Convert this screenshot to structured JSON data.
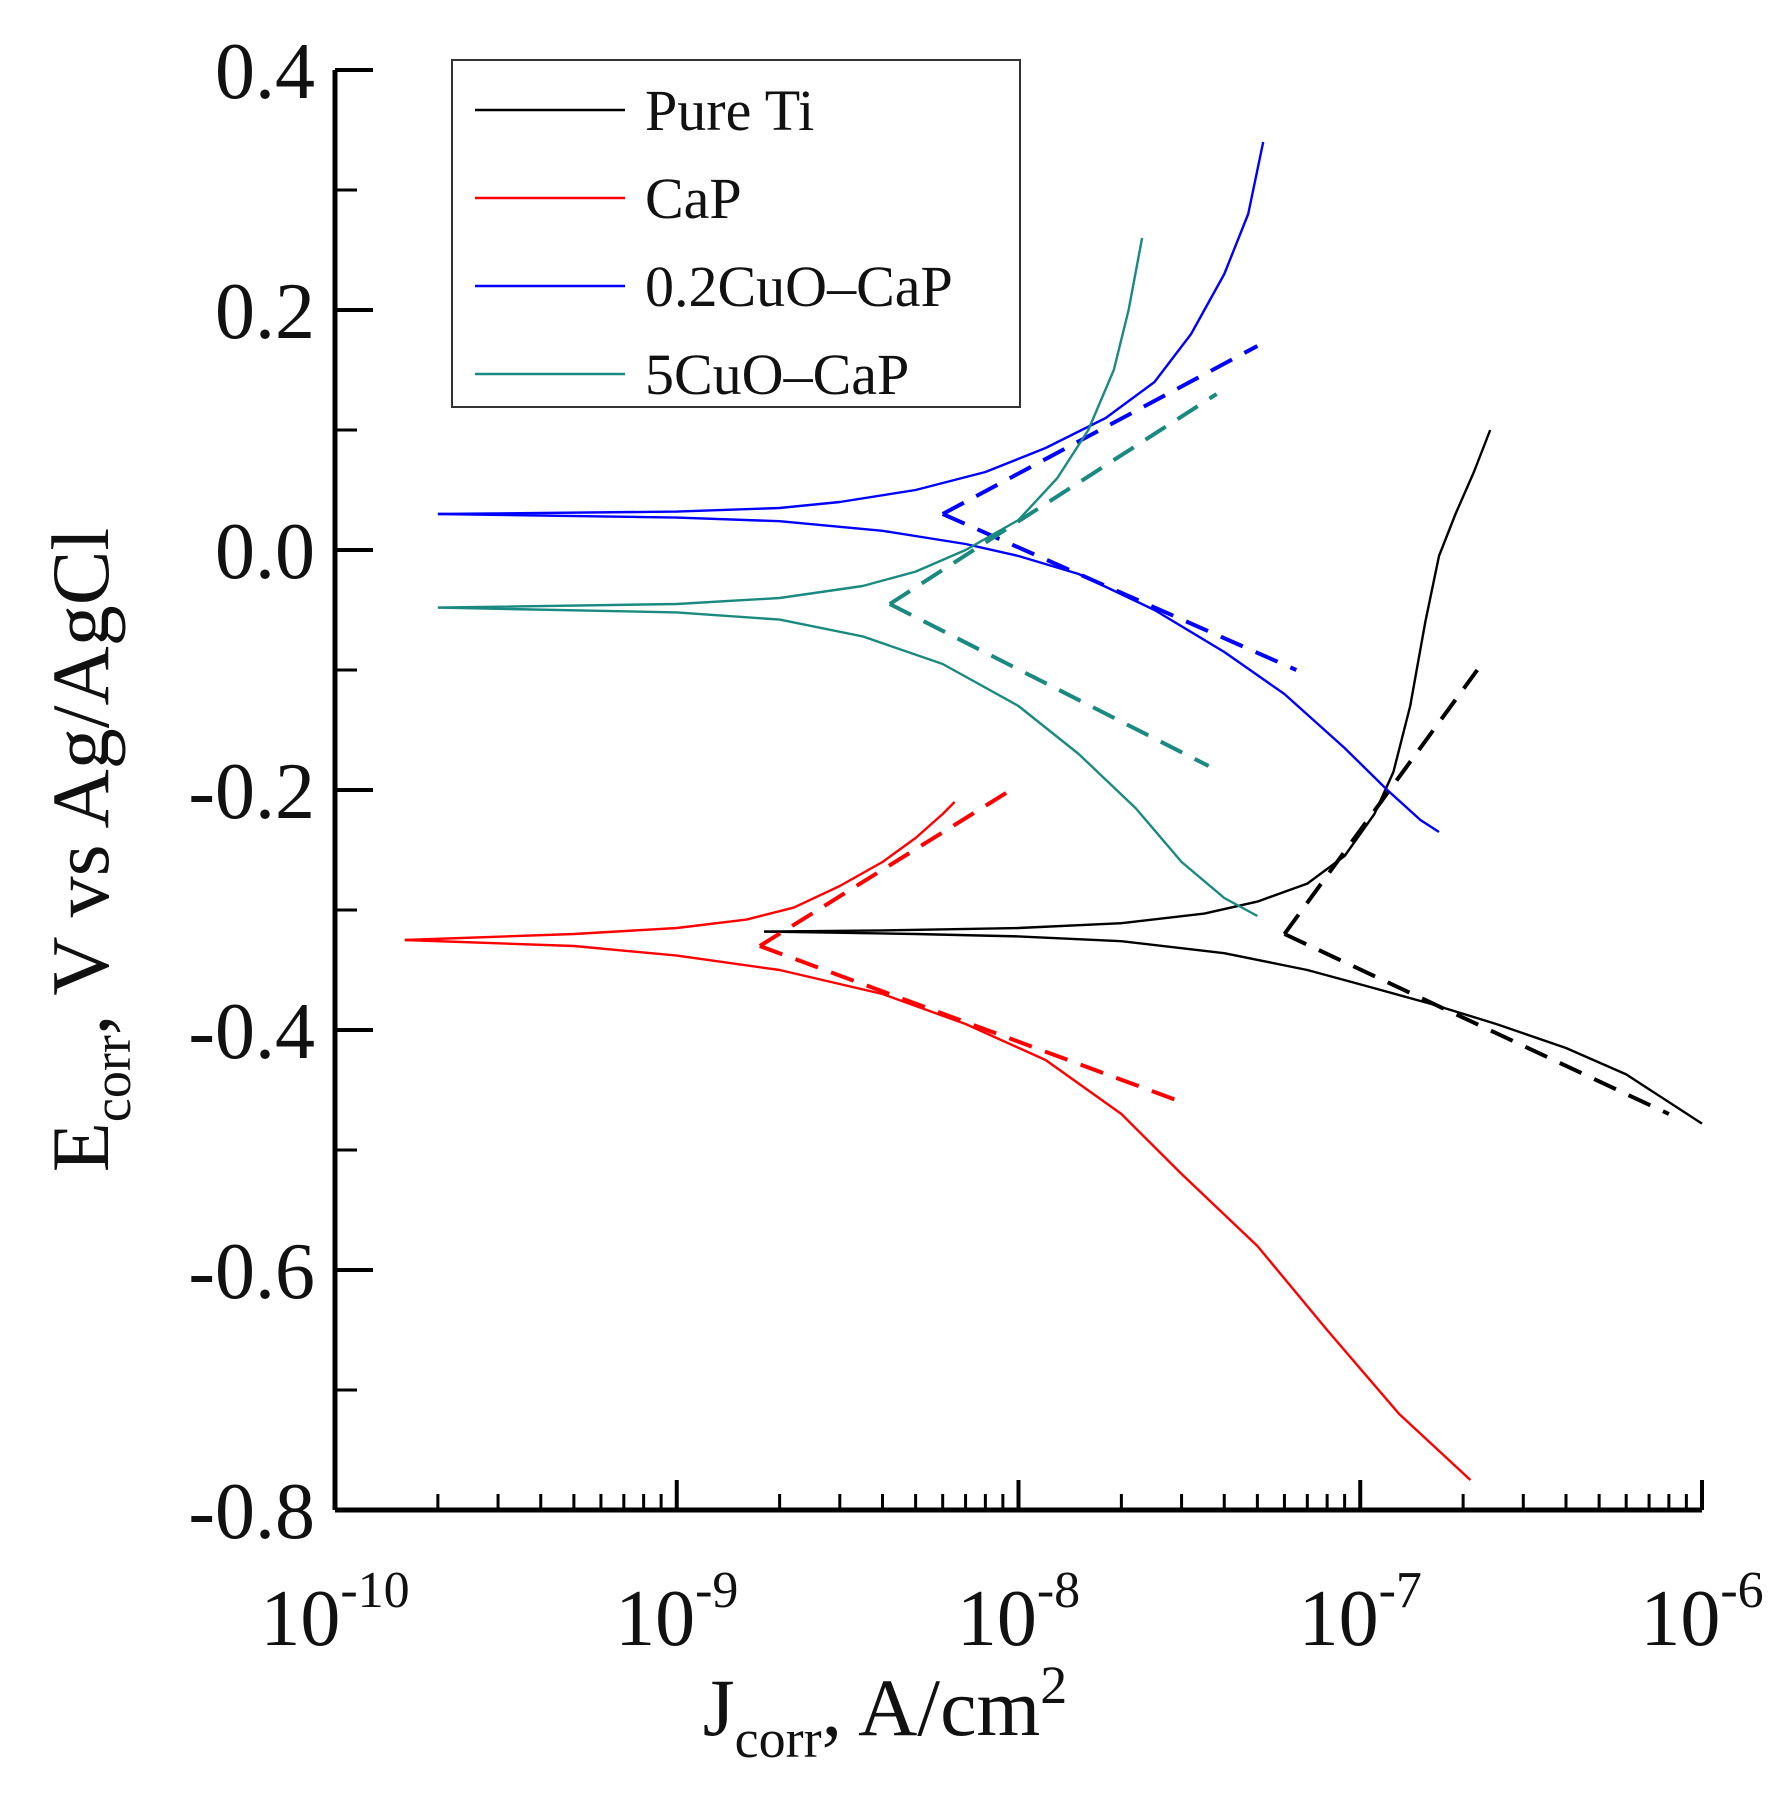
{
  "chart_data": {
    "type": "line",
    "title": "",
    "xlabel": {
      "main": "J",
      "sub": "corr",
      "rest": ", A/cm",
      "sup": "2"
    },
    "ylabel": {
      "main": "E",
      "sub": "corr",
      "rest": ", V vs Ag/AgCl"
    },
    "x_scale": "log",
    "xlim": [
      1e-10,
      1e-06
    ],
    "ylim": [
      -0.8,
      0.4
    ],
    "y_ticks": [
      "0.4",
      "0.2",
      "0.0",
      "-0.2",
      "-0.4",
      "-0.6",
      "-0.8"
    ],
    "y_tick_values": [
      0.4,
      0.2,
      0.0,
      -0.2,
      -0.4,
      -0.6,
      -0.8
    ],
    "x_ticks": [
      {
        "base": "10",
        "exp": "-10",
        "value": 1e-10
      },
      {
        "base": "10",
        "exp": "-9",
        "value": 1e-09
      },
      {
        "base": "10",
        "exp": "-8",
        "value": 1e-08
      },
      {
        "base": "10",
        "exp": "-7",
        "value": 1e-07
      },
      {
        "base": "10",
        "exp": "-6",
        "value": 1e-06
      }
    ],
    "legend": {
      "position": "top-left"
    },
    "series": [
      {
        "name": "Pure Ti",
        "color": "#000000",
        "anodic": [
          [
            1.8e-09,
            -0.318
          ],
          [
            4e-09,
            -0.317
          ],
          [
            1e-08,
            -0.315
          ],
          [
            2e-08,
            -0.311
          ],
          [
            3.5e-08,
            -0.303
          ],
          [
            5e-08,
            -0.293
          ],
          [
            7e-08,
            -0.278
          ],
          [
            9e-08,
            -0.255
          ],
          [
            1.1e-07,
            -0.22
          ],
          [
            1.25e-07,
            -0.185
          ],
          [
            1.4e-07,
            -0.13
          ],
          [
            1.55e-07,
            -0.06
          ],
          [
            1.7e-07,
            -0.005
          ],
          [
            1.9e-07,
            0.03
          ],
          [
            2.15e-07,
            0.065
          ],
          [
            2.4e-07,
            0.1
          ]
        ],
        "cathodic": [
          [
            1.8e-09,
            -0.318
          ],
          [
            5e-09,
            -0.32
          ],
          [
            1e-08,
            -0.322
          ],
          [
            2e-08,
            -0.326
          ],
          [
            4e-08,
            -0.336
          ],
          [
            7e-08,
            -0.35
          ],
          [
            1e-07,
            -0.362
          ],
          [
            1.6e-07,
            -0.378
          ],
          [
            2.5e-07,
            -0.395
          ],
          [
            4e-07,
            -0.415
          ],
          [
            6e-07,
            -0.437
          ],
          [
            1e-06,
            -0.478
          ]
        ],
        "tafel": [
          [
            [
              6e-08,
              -0.32
            ],
            [
              2.2e-07,
              -0.1
            ]
          ],
          [
            [
              6e-08,
              -0.32
            ],
            [
              8e-07,
              -0.47
            ]
          ]
        ]
      },
      {
        "name": "CaP",
        "color": "#ff0000",
        "anodic": [
          [
            1.6e-10,
            -0.325
          ],
          [
            5e-10,
            -0.32
          ],
          [
            1e-09,
            -0.315
          ],
          [
            1.6e-09,
            -0.308
          ],
          [
            2.2e-09,
            -0.298
          ],
          [
            3e-09,
            -0.28
          ],
          [
            4e-09,
            -0.26
          ],
          [
            5e-09,
            -0.24
          ],
          [
            6e-09,
            -0.22
          ],
          [
            6.5e-09,
            -0.21
          ]
        ],
        "cathodic": [
          [
            1.6e-10,
            -0.325
          ],
          [
            5e-10,
            -0.33
          ],
          [
            1e-09,
            -0.338
          ],
          [
            2e-09,
            -0.35
          ],
          [
            4e-09,
            -0.37
          ],
          [
            7e-09,
            -0.395
          ],
          [
            1.2e-08,
            -0.425
          ],
          [
            2e-08,
            -0.47
          ],
          [
            3e-08,
            -0.52
          ],
          [
            5e-08,
            -0.58
          ],
          [
            8e-08,
            -0.65
          ],
          [
            1.3e-07,
            -0.72
          ],
          [
            2.1e-07,
            -0.775
          ]
        ],
        "tafel": [
          [
            [
              1.75e-09,
              -0.33
            ],
            [
              9.5e-09,
              -0.2
            ]
          ],
          [
            [
              1.75e-09,
              -0.33
            ],
            [
              3e-08,
              -0.46
            ]
          ]
        ]
      },
      {
        "name": "0.2CuO–CaP",
        "color": "#0000ff",
        "anodic": [
          [
            2e-10,
            0.03
          ],
          [
            1e-09,
            0.032
          ],
          [
            2e-09,
            0.035
          ],
          [
            3e-09,
            0.04
          ],
          [
            5e-09,
            0.05
          ],
          [
            8e-09,
            0.065
          ],
          [
            1.2e-08,
            0.085
          ],
          [
            1.8e-08,
            0.11
          ],
          [
            2.5e-08,
            0.14
          ],
          [
            3.2e-08,
            0.18
          ],
          [
            4e-08,
            0.23
          ],
          [
            4.7e-08,
            0.28
          ],
          [
            5.2e-08,
            0.34
          ]
        ],
        "cathodic": [
          [
            2e-10,
            0.03
          ],
          [
            1e-09,
            0.027
          ],
          [
            2e-09,
            0.024
          ],
          [
            4e-09,
            0.016
          ],
          [
            7e-09,
            0.005
          ],
          [
            1e-08,
            -0.005
          ],
          [
            1.5e-08,
            -0.02
          ],
          [
            2.5e-08,
            -0.05
          ],
          [
            4e-08,
            -0.085
          ],
          [
            6e-08,
            -0.12
          ],
          [
            9e-08,
            -0.165
          ],
          [
            1.2e-07,
            -0.2
          ],
          [
            1.5e-07,
            -0.225
          ],
          [
            1.7e-07,
            -0.235
          ]
        ],
        "tafel": [
          [
            [
              6e-09,
              0.03
            ],
            [
              5e-08,
              0.17
            ]
          ],
          [
            [
              6e-09,
              0.03
            ],
            [
              6.5e-08,
              -0.1
            ]
          ]
        ]
      },
      {
        "name": "5CuO–CaP",
        "color": "#1a8a80",
        "anodic": [
          [
            2e-10,
            -0.048
          ],
          [
            1e-09,
            -0.045
          ],
          [
            2e-09,
            -0.04
          ],
          [
            3.5e-09,
            -0.03
          ],
          [
            5e-09,
            -0.018
          ],
          [
            7e-09,
            0.0
          ],
          [
            1e-08,
            0.025
          ],
          [
            1.3e-08,
            0.06
          ],
          [
            1.6e-08,
            0.1
          ],
          [
            1.9e-08,
            0.15
          ],
          [
            2.1e-08,
            0.2
          ],
          [
            2.3e-08,
            0.26
          ]
        ],
        "cathodic": [
          [
            2e-10,
            -0.048
          ],
          [
            1e-09,
            -0.052
          ],
          [
            2e-09,
            -0.058
          ],
          [
            3.5e-09,
            -0.072
          ],
          [
            6e-09,
            -0.095
          ],
          [
            1e-08,
            -0.13
          ],
          [
            1.5e-08,
            -0.17
          ],
          [
            2.2e-08,
            -0.215
          ],
          [
            3e-08,
            -0.26
          ],
          [
            4e-08,
            -0.29
          ],
          [
            5e-08,
            -0.305
          ]
        ],
        "tafel": [
          [
            [
              4.2e-09,
              -0.045
            ],
            [
              3.8e-08,
              0.13
            ]
          ],
          [
            [
              4.2e-09,
              -0.045
            ],
            [
              3.6e-08,
              -0.18
            ]
          ]
        ]
      }
    ]
  }
}
